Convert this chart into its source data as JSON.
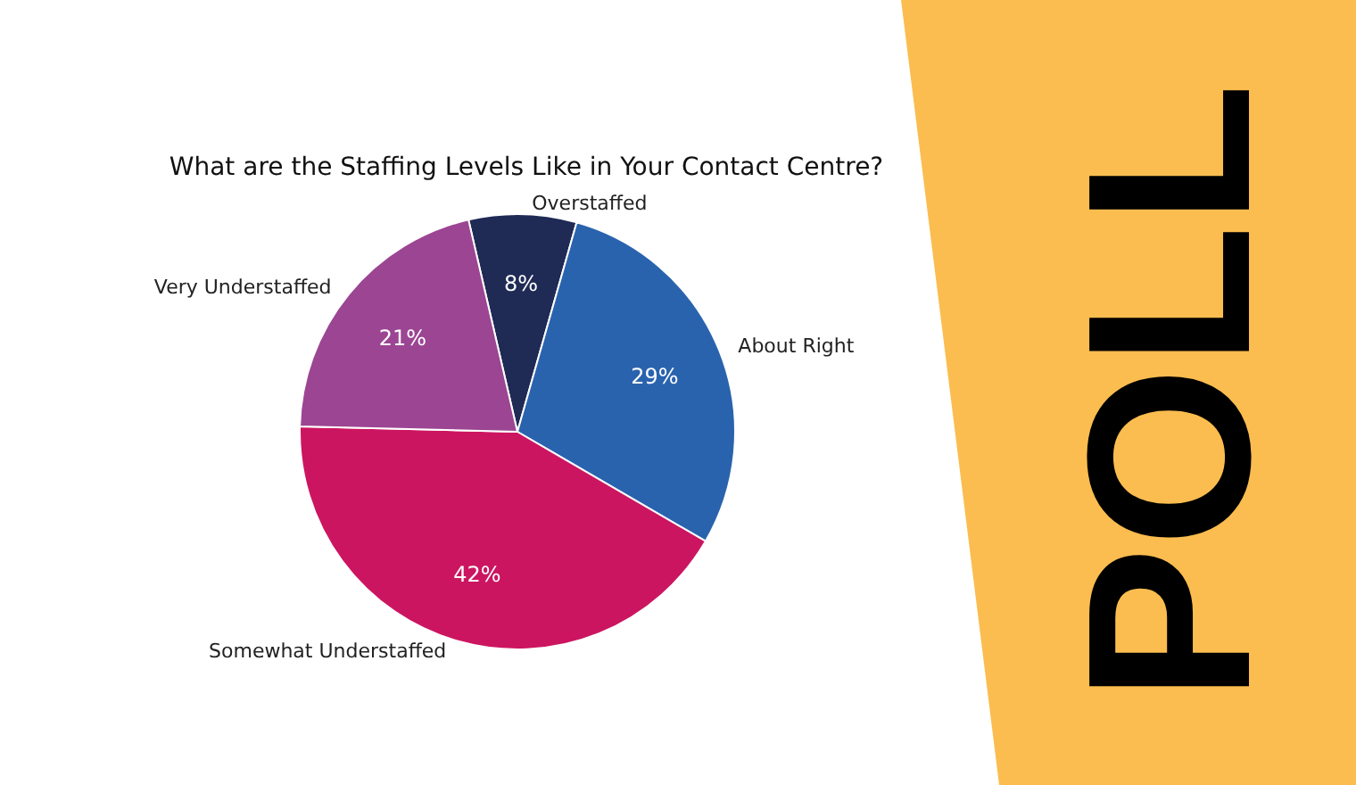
{
  "chart_data": {
    "type": "pie",
    "title": "What are the Staffing Levels Like in Your Contact Centre?",
    "categories": [
      "Overstaffed",
      "About Right",
      "Somewhat Understaffed",
      "Very Understaffed"
    ],
    "values": [
      8,
      29,
      42,
      21
    ],
    "colors": [
      "#1f2a55",
      "#2a63ad",
      "#cc1560",
      "#9b4593"
    ],
    "value_labels": [
      "8%",
      "29%",
      "42%",
      "21%"
    ],
    "legend": false,
    "annotations": [
      "POLL"
    ]
  }
}
